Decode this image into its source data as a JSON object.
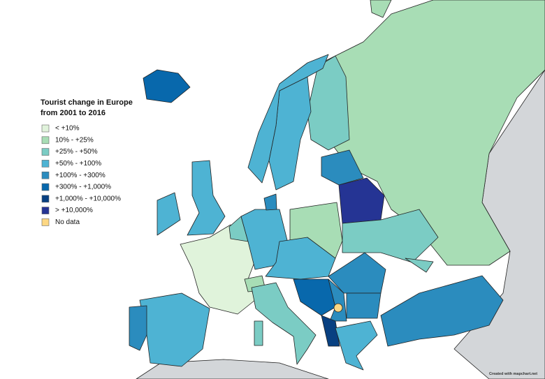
{
  "legend": {
    "title": [
      "Tourist change in Europe",
      "from 2001 to 2016"
    ],
    "items": [
      {
        "label": "< +10%",
        "color": "#e0f3db"
      },
      {
        "label": "10% - +25%",
        "color": "#a8ddb5"
      },
      {
        "label": "+25% - +50%",
        "color": "#7bccc4"
      },
      {
        "label": "+50% - +100%",
        "color": "#4eb3d3"
      },
      {
        "label": "+100% - +300%",
        "color": "#2b8cbe"
      },
      {
        "label": "+300% - +1,000%",
        "color": "#0868ac"
      },
      {
        "label": "+1,000% - +10,000%",
        "color": "#084081"
      },
      {
        "label": "> +10,000%",
        "color": "#253494"
      },
      {
        "label": "No data",
        "color": "#fdd783"
      }
    ]
  },
  "credit": "Created with mapchart.net"
}
